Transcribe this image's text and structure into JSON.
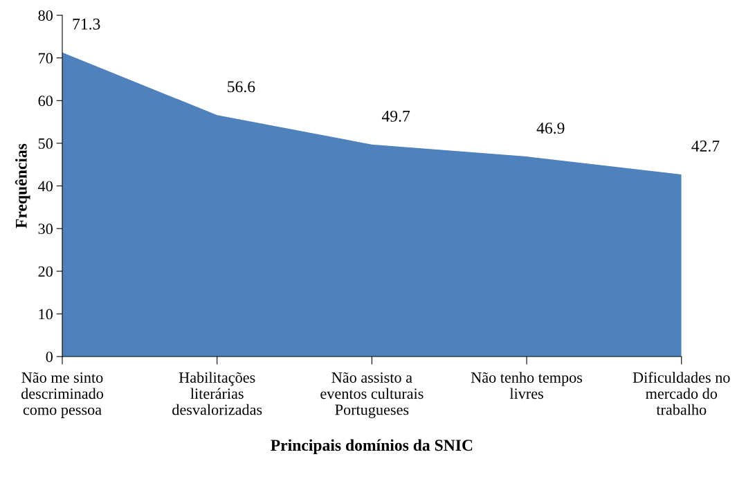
{
  "chart_data": {
    "type": "area",
    "xlabel": "Principais domínios da SNIC",
    "ylabel": "Frequências",
    "categories": [
      "Não me sinto\ndescriminado\ncomo pessoa",
      "Habilitações\nliterárias\ndesvalorizadas",
      "Não assisto a\neventos culturais\nPortugueses",
      "Não tenho tempos\nlivres",
      "Dificuldades no\nmercado do\ntrabalho"
    ],
    "series": [
      {
        "color": "#4f81bd",
        "values": [
          71.3,
          56.6,
          49.7,
          46.9,
          42.7
        ]
      }
    ],
    "ylim": [
      0,
      80
    ],
    "yticks": [
      0,
      10,
      20,
      30,
      40,
      50,
      60,
      70,
      80
    ],
    "data_labels": true,
    "grid": false
  }
}
